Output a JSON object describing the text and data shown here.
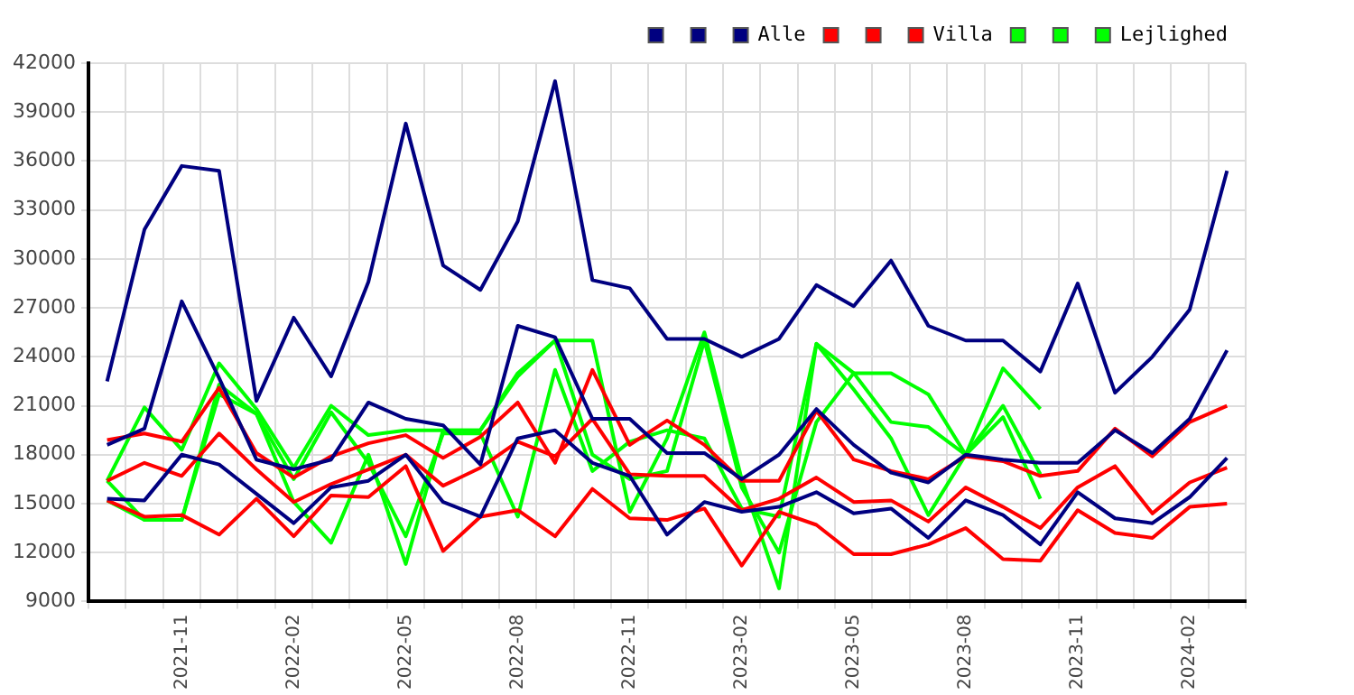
{
  "chart_data": {
    "type": "line",
    "categories": [
      null,
      null,
      "2021-11",
      null,
      null,
      "2022-02",
      null,
      null,
      "2022-05",
      null,
      null,
      "2022-08",
      null,
      null,
      "2022-11",
      null,
      null,
      "2023-02",
      null,
      null,
      "2023-05",
      null,
      null,
      "2023-08",
      null,
      null,
      "2023-11",
      null,
      null,
      "2024-02",
      null
    ],
    "series": [
      {
        "color": "#000080",
        "values": [
          22500,
          31800,
          35700,
          35400,
          21300,
          26400,
          22800,
          28600,
          38300,
          29600,
          28100,
          32300,
          40900,
          28700,
          28200,
          25100,
          25100,
          24000,
          25100,
          28400,
          27100,
          29900,
          25900,
          25000,
          25000,
          23100,
          28500,
          21800,
          24000,
          26900,
          35400
        ]
      },
      {
        "color": "#000080",
        "values": [
          18600,
          19600,
          27400,
          22700,
          17700,
          17100,
          17700,
          21200,
          20200,
          19800,
          17400,
          25900,
          25200,
          20200,
          20200,
          18100,
          18100,
          16500,
          18000,
          20800,
          18600,
          16900,
          16300,
          18000,
          17700,
          17500,
          17500,
          19500,
          18100,
          20200,
          24400
        ]
      },
      {
        "name": "Alle",
        "color": "#000080",
        "values": [
          15300,
          15200,
          18000,
          17400,
          15600,
          13800,
          16000,
          16400,
          18000,
          15100,
          14200,
          19000,
          19500,
          17500,
          16700,
          13100,
          15100,
          14500,
          14800,
          15700,
          14400,
          14700,
          12900,
          15200,
          14300,
          12500,
          15700,
          14100,
          13800,
          15400,
          17800
        ]
      },
      {
        "color": "#ff0000",
        "values": [
          18900,
          19300,
          18800,
          22100,
          18100,
          16600,
          17900,
          18700,
          19200,
          17800,
          19100,
          21200,
          17500,
          23200,
          18600,
          20100,
          18600,
          16400,
          16400,
          20700,
          17700,
          17000,
          16500,
          17900,
          17600,
          16700,
          17000,
          19600,
          17900,
          20000,
          21000
        ]
      },
      {
        "color": "#ff0000",
        "values": [
          16400,
          17500,
          16700,
          19300,
          17100,
          15100,
          16200,
          17100,
          18000,
          16100,
          17200,
          18800,
          17900,
          20200,
          16800,
          16700,
          16700,
          14600,
          15300,
          16600,
          15100,
          15200,
          13900,
          16000,
          14800,
          13500,
          16000,
          17300,
          14400,
          16300,
          17200
        ]
      },
      {
        "name": "Villa",
        "color": "#ff0000",
        "values": [
          15200,
          14200,
          14300,
          13100,
          15300,
          13000,
          15500,
          15400,
          17300,
          12100,
          14200,
          14600,
          13000,
          15900,
          14100,
          14000,
          14700,
          11200,
          14500,
          13700,
          11900,
          11900,
          12500,
          13500,
          11600,
          11500,
          14600,
          13200,
          12900,
          14800,
          15000
        ]
      },
      {
        "color": "#00ff00",
        "values": [
          16400,
          20900,
          18300,
          23600,
          20800,
          17200,
          21000,
          19200,
          19500,
          19500,
          19500,
          23000,
          25000,
          25000,
          14500,
          19000,
          25500,
          16500,
          9800,
          24800,
          23000,
          23000,
          21700,
          18000,
          23300,
          20800,
          null,
          null,
          null,
          null,
          null
        ]
      },
      {
        "color": "#00ff00",
        "values": [
          16400,
          14000,
          14000,
          22300,
          20500,
          15100,
          12600,
          18000,
          11300,
          19500,
          19500,
          22800,
          25000,
          18000,
          16500,
          17000,
          25000,
          16000,
          12000,
          20000,
          23000,
          20000,
          19700,
          18000,
          20300,
          15300,
          null,
          null,
          null,
          null,
          null
        ]
      },
      {
        "name": "Lejlighed",
        "color": "#00ff00",
        "values": [
          15200,
          14000,
          14000,
          21700,
          20500,
          16500,
          20600,
          17500,
          13000,
          19300,
          19300,
          14200,
          23200,
          17000,
          18800,
          19500,
          19000,
          14700,
          14200,
          24800,
          22000,
          19000,
          14300,
          18000,
          21000,
          16800,
          null,
          null,
          null,
          null,
          null
        ]
      }
    ],
    "ylim": [
      9000,
      42000
    ],
    "yticks": [
      9000,
      12000,
      15000,
      18000,
      21000,
      24000,
      27000,
      30000,
      33000,
      36000,
      39000,
      42000
    ],
    "grid": true,
    "legend": "top right",
    "marker": "none",
    "line_style": "solid"
  }
}
